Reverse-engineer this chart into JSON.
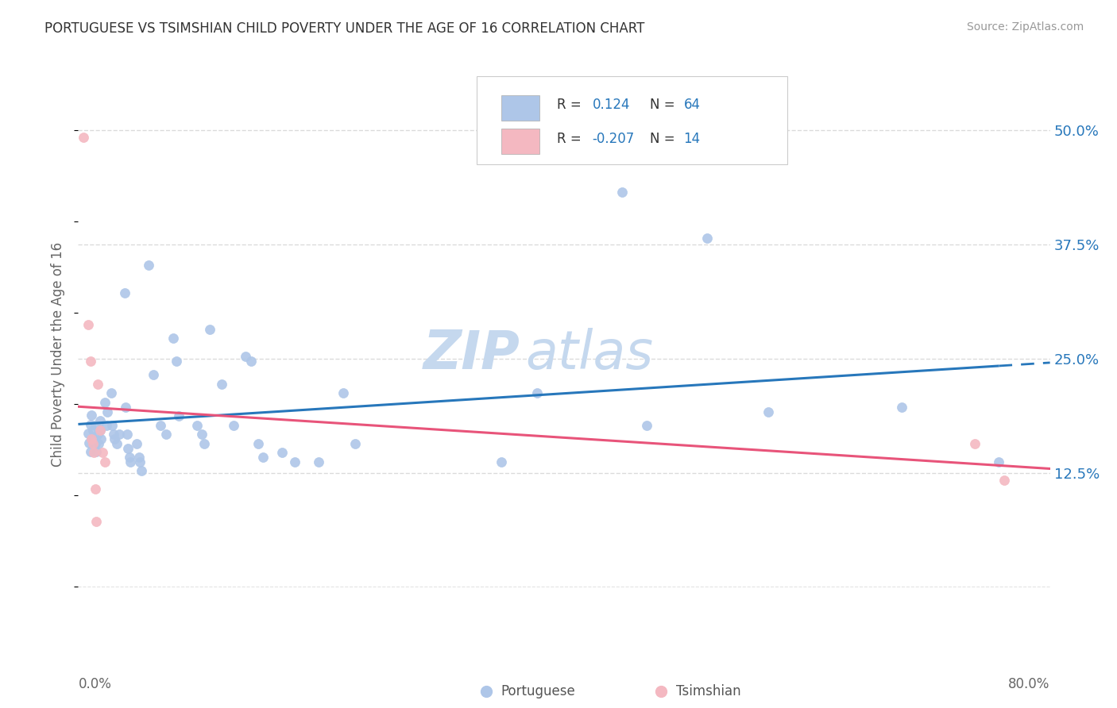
{
  "title": "PORTUGUESE VS TSIMSHIAN CHILD POVERTY UNDER THE AGE OF 16 CORRELATION CHART",
  "source": "Source: ZipAtlas.com",
  "ylabel": "Child Poverty Under the Age of 16",
  "ytick_values": [
    0.125,
    0.25,
    0.375,
    0.5
  ],
  "xmin": 0.0,
  "xmax": 0.8,
  "ymin": -0.055,
  "ymax": 0.565,
  "portuguese_color": "#aec6e8",
  "tsimshian_color": "#f4b8c1",
  "portuguese_line_color": "#2777bb",
  "tsimshian_line_color": "#e8547a",
  "r_portuguese": 0.124,
  "n_portuguese": 64,
  "r_tsimshian": -0.207,
  "n_tsimshian": 14,
  "portuguese_scatter": [
    [
      0.008,
      0.168
    ],
    [
      0.009,
      0.158
    ],
    [
      0.01,
      0.178
    ],
    [
      0.01,
      0.148
    ],
    [
      0.011,
      0.188
    ],
    [
      0.012,
      0.172
    ],
    [
      0.013,
      0.162
    ],
    [
      0.014,
      0.177
    ],
    [
      0.014,
      0.157
    ],
    [
      0.015,
      0.148
    ],
    [
      0.016,
      0.167
    ],
    [
      0.017,
      0.157
    ],
    [
      0.018,
      0.172
    ],
    [
      0.018,
      0.182
    ],
    [
      0.019,
      0.162
    ],
    [
      0.022,
      0.202
    ],
    [
      0.023,
      0.177
    ],
    [
      0.024,
      0.192
    ],
    [
      0.027,
      0.212
    ],
    [
      0.028,
      0.177
    ],
    [
      0.029,
      0.167
    ],
    [
      0.03,
      0.162
    ],
    [
      0.032,
      0.157
    ],
    [
      0.034,
      0.167
    ],
    [
      0.038,
      0.322
    ],
    [
      0.039,
      0.197
    ],
    [
      0.04,
      0.167
    ],
    [
      0.041,
      0.152
    ],
    [
      0.042,
      0.142
    ],
    [
      0.043,
      0.137
    ],
    [
      0.048,
      0.157
    ],
    [
      0.05,
      0.142
    ],
    [
      0.051,
      0.137
    ],
    [
      0.052,
      0.127
    ],
    [
      0.058,
      0.352
    ],
    [
      0.062,
      0.232
    ],
    [
      0.068,
      0.177
    ],
    [
      0.072,
      0.167
    ],
    [
      0.078,
      0.272
    ],
    [
      0.081,
      0.247
    ],
    [
      0.083,
      0.187
    ],
    [
      0.098,
      0.177
    ],
    [
      0.102,
      0.167
    ],
    [
      0.104,
      0.157
    ],
    [
      0.108,
      0.282
    ],
    [
      0.118,
      0.222
    ],
    [
      0.128,
      0.177
    ],
    [
      0.138,
      0.252
    ],
    [
      0.142,
      0.247
    ],
    [
      0.148,
      0.157
    ],
    [
      0.152,
      0.142
    ],
    [
      0.168,
      0.147
    ],
    [
      0.178,
      0.137
    ],
    [
      0.198,
      0.137
    ],
    [
      0.218,
      0.212
    ],
    [
      0.228,
      0.157
    ],
    [
      0.348,
      0.137
    ],
    [
      0.378,
      0.212
    ],
    [
      0.448,
      0.432
    ],
    [
      0.468,
      0.177
    ],
    [
      0.518,
      0.382
    ],
    [
      0.568,
      0.192
    ],
    [
      0.678,
      0.197
    ],
    [
      0.758,
      0.137
    ]
  ],
  "tsimshian_scatter": [
    [
      0.004,
      0.492
    ],
    [
      0.008,
      0.287
    ],
    [
      0.01,
      0.247
    ],
    [
      0.011,
      0.162
    ],
    [
      0.012,
      0.157
    ],
    [
      0.013,
      0.147
    ],
    [
      0.014,
      0.107
    ],
    [
      0.015,
      0.072
    ],
    [
      0.016,
      0.222
    ],
    [
      0.018,
      0.172
    ],
    [
      0.02,
      0.147
    ],
    [
      0.022,
      0.137
    ],
    [
      0.738,
      0.157
    ],
    [
      0.762,
      0.117
    ]
  ],
  "background_color": "#ffffff",
  "grid_color": "#d8d8d8",
  "watermark_text1": "ZIP",
  "watermark_text2": "atlas",
  "watermark_color": "#c5d8ee",
  "marker_size": 75,
  "marker_edge_width": 0.5
}
